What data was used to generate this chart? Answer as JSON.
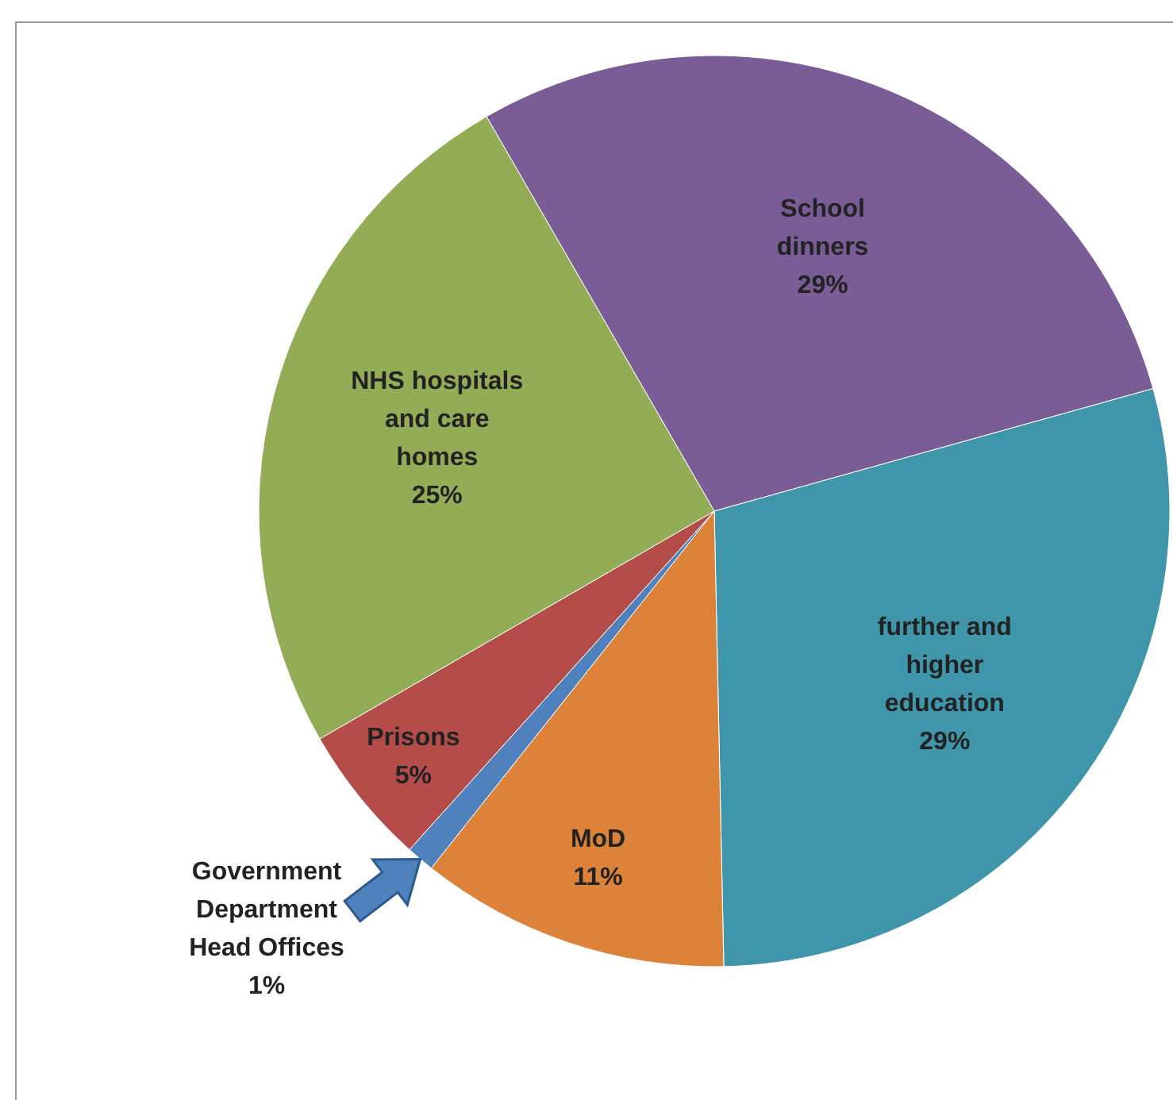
{
  "chart_data": {
    "type": "pie",
    "categories": [
      "School dinners",
      "further and higher education",
      "MoD",
      "Government Department Head Offices",
      "Prisons",
      "NHS hospitals and care homes"
    ],
    "values": [
      29,
      29,
      11,
      1,
      5,
      25
    ],
    "value_labels": [
      "29%",
      "29%",
      "11%",
      "1%",
      "5%",
      "25%"
    ],
    "colors": [
      "#7a5c97",
      "#3f96ab",
      "#dd8239",
      "#4f81bd",
      "#b44d4a",
      "#92ad56"
    ]
  }
}
